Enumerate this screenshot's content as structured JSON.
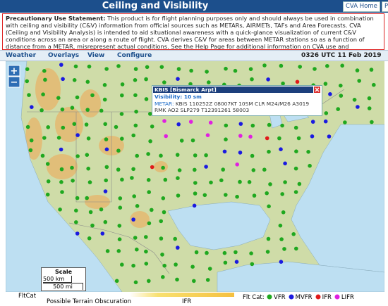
{
  "header": {
    "title": "Ceiling and Visibility",
    "buttons": [
      "CVA Home",
      "P"
    ]
  },
  "statement": {
    "label": "Precautionary Use Statement:",
    "text": "This product is for flight planning purposes only and should always be used in combination with ceiling and visibility (C&V) information from official sources such as METARs, AIRMETs, TAFs and Area Forecasts. CVA (Ceiling and Visibility Analysis) is intended to aid situational awareness with a quick-glance visualization of current C&V conditions across an area or along a route of flight. CVA derives C&V for areas between METAR stations so as a function of distance from a METAR, misrepresent actual conditions. See the Help Page for additional information on CVA use and limitations."
  },
  "menu": {
    "items": [
      "Weather",
      "Overlays",
      "View",
      "Configure"
    ],
    "time": "0326 UTC 11 Feb 2019"
  },
  "map": {
    "zoom_in": "+",
    "zoom_out": "−"
  },
  "popup": {
    "title": "KBIS [Bismarck Arpt]",
    "visibility": "Visibility: 10 sm",
    "metar_label": "METAR:",
    "metar": "KBIS 110252Z 08007KT 10SM CLR M24/M26 A3019 RMK AO2 SLP279 T12391261 58003"
  },
  "scale": {
    "title": "Scale",
    "km": "500 km",
    "mi": "500 mi"
  },
  "legend": {
    "fltcat": "FltCat",
    "terrain": "Possible Terrain Obscuration",
    "ifr": "IFR",
    "flt_cat_label": "Flt Cat:",
    "categories": [
      {
        "name": "VFR",
        "color": "#1fa81f"
      },
      {
        "name": "MVFR",
        "color": "#1a1ae0"
      },
      {
        "name": "IFR",
        "color": "#e01a1a"
      },
      {
        "name": "LIFR",
        "color": "#e020e0"
      }
    ]
  }
}
